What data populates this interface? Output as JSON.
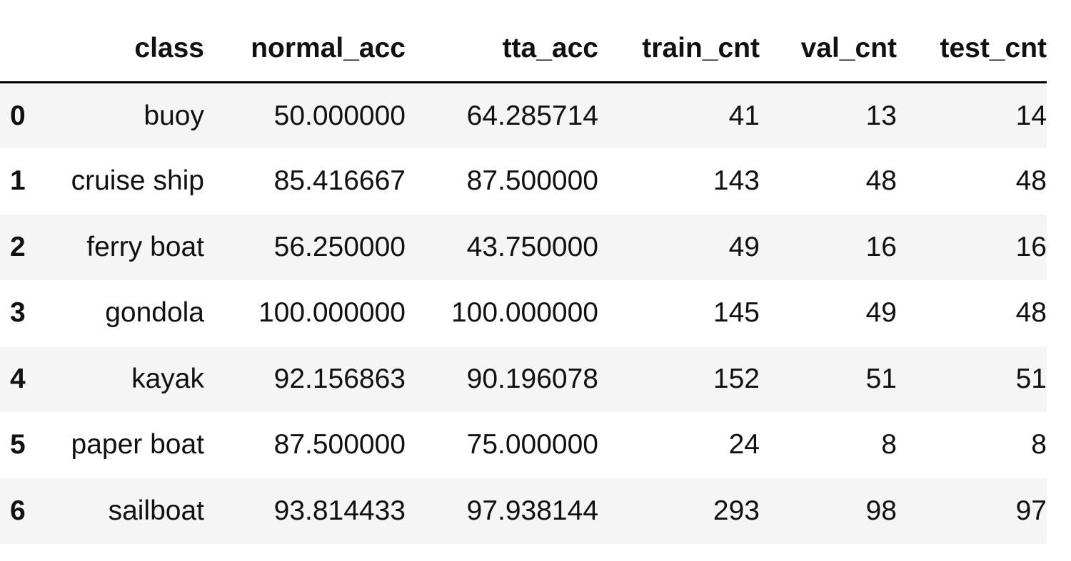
{
  "table": {
    "index_header": "",
    "columns": [
      "class",
      "normal_acc",
      "tta_acc",
      "train_cnt",
      "val_cnt",
      "test_cnt"
    ],
    "rows": [
      {
        "index": "0",
        "cells": [
          "buoy",
          "50.000000",
          "64.285714",
          "41",
          "13",
          "14"
        ]
      },
      {
        "index": "1",
        "cells": [
          "cruise ship",
          "85.416667",
          "87.500000",
          "143",
          "48",
          "48"
        ]
      },
      {
        "index": "2",
        "cells": [
          "ferry boat",
          "56.250000",
          "43.750000",
          "49",
          "16",
          "16"
        ]
      },
      {
        "index": "3",
        "cells": [
          "gondola",
          "100.000000",
          "100.000000",
          "145",
          "49",
          "48"
        ]
      },
      {
        "index": "4",
        "cells": [
          "kayak",
          "92.156863",
          "90.196078",
          "152",
          "51",
          "51"
        ]
      },
      {
        "index": "5",
        "cells": [
          "paper boat",
          "87.500000",
          "75.000000",
          "24",
          "8",
          "8"
        ]
      },
      {
        "index": "6",
        "cells": [
          "sailboat",
          "93.814433",
          "97.938144",
          "293",
          "98",
          "97"
        ]
      }
    ]
  },
  "colors": {
    "stripe": "#f5f5f5",
    "text": "#111111",
    "header_rule": "#000000"
  }
}
